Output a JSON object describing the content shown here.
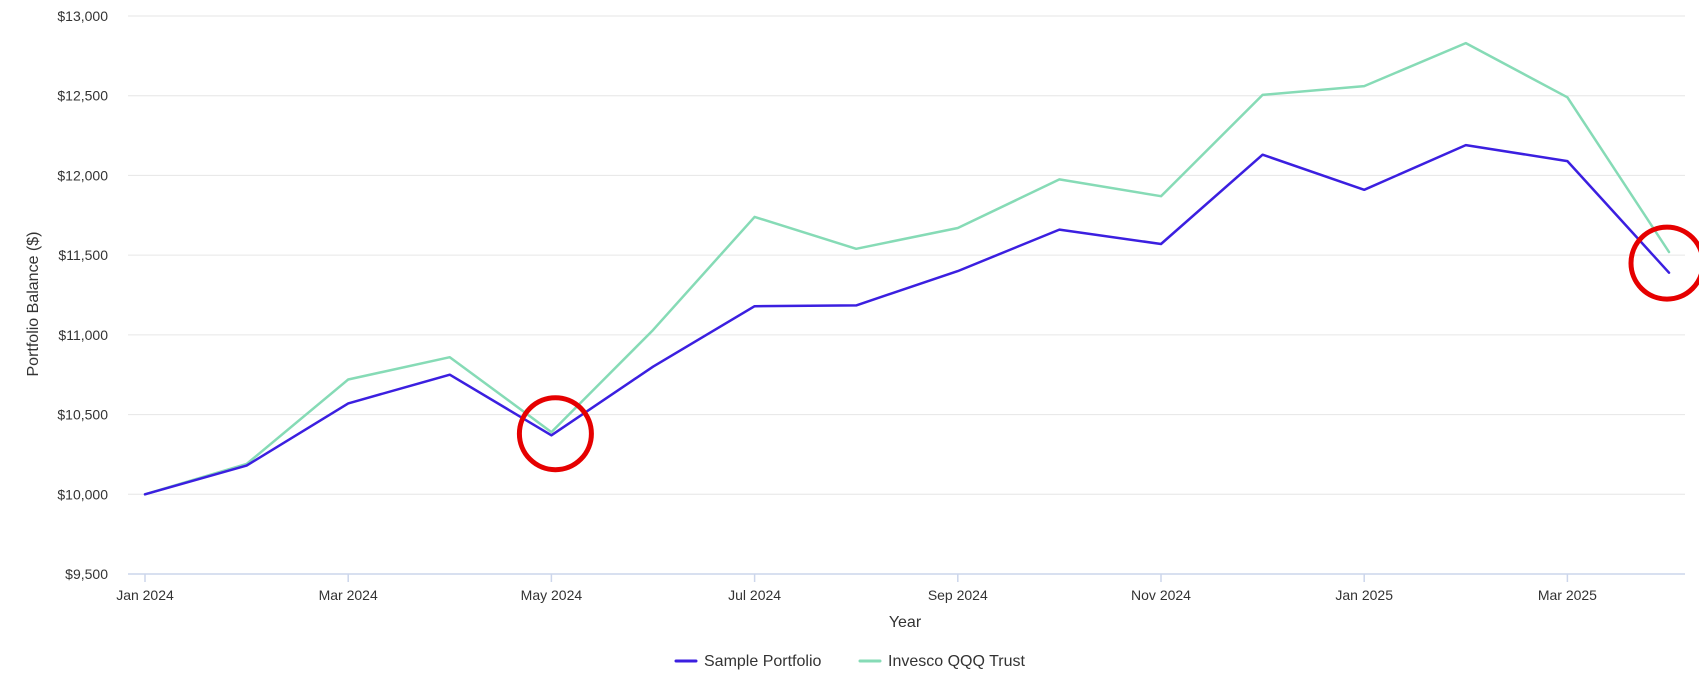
{
  "chart_data": {
    "type": "line",
    "title": "",
    "xlabel": "Year",
    "ylabel": "Portfolio Balance ($)",
    "ylim": [
      9500,
      13000
    ],
    "yticks": [
      9500,
      10000,
      10500,
      11000,
      11500,
      12000,
      12500,
      13000
    ],
    "ytick_labels": [
      "$9,500",
      "$10,000",
      "$10,500",
      "$11,000",
      "$11,500",
      "$12,000",
      "$12,500",
      "$13,000"
    ],
    "x": [
      "2024-01",
      "2024-02",
      "2024-03",
      "2024-04",
      "2024-05",
      "2024-06",
      "2024-07",
      "2024-08",
      "2024-09",
      "2024-10",
      "2024-11",
      "2024-12",
      "2025-01",
      "2025-02",
      "2025-03",
      "2025-04"
    ],
    "xtick_labels": [
      "Jan 2024",
      "Mar 2024",
      "May 2024",
      "Jul 2024",
      "Sep 2024",
      "Nov 2024",
      "Jan 2025",
      "Mar 2025"
    ],
    "xtick_positions": [
      "2024-01",
      "2024-03",
      "2024-05",
      "2024-07",
      "2024-09",
      "2024-11",
      "2025-01",
      "2025-03"
    ],
    "grid": true,
    "legend_position": "bottom-center",
    "series": [
      {
        "name": "Sample Portfolio",
        "color": "#3b1fe0",
        "values": [
          10000,
          10180,
          10570,
          10750,
          10370,
          10800,
          11180,
          11185,
          11400,
          11660,
          11570,
          12130,
          11910,
          12190,
          12090,
          11390
        ]
      },
      {
        "name": "Invesco QQQ Trust",
        "color": "#86dbb6",
        "values": [
          10000,
          10190,
          10720,
          10860,
          10390,
          11030,
          11740,
          11540,
          11670,
          11975,
          11870,
          12505,
          12560,
          12830,
          12490,
          11520
        ]
      }
    ],
    "annotations": [
      {
        "type": "circle",
        "color": "#e60000",
        "at": "2024-05",
        "value": 10380
      },
      {
        "type": "circle",
        "color": "#e60000",
        "at": "2025-04",
        "value": 11450
      }
    ]
  }
}
